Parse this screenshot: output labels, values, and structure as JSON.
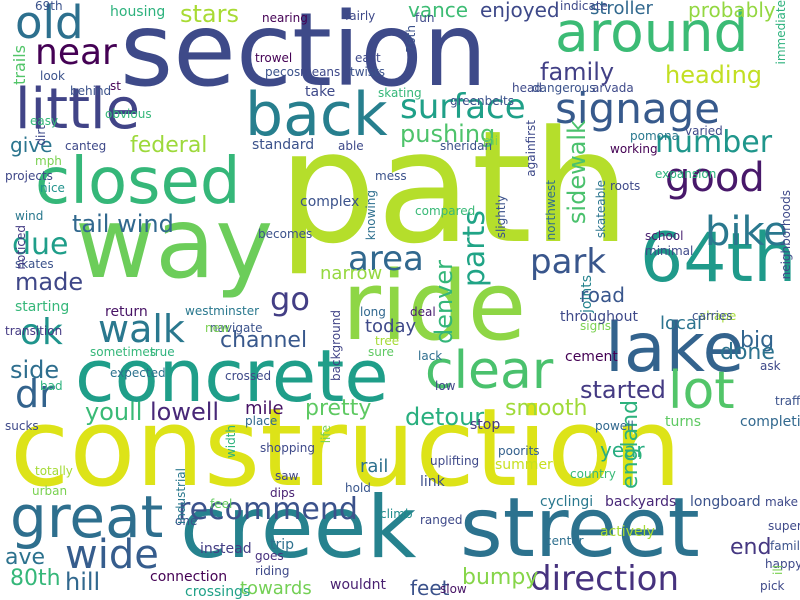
{
  "words": [
    {
      "text": "path",
      "color": "#b5de2b"
    },
    {
      "text": "construction",
      "color": "#dde318"
    },
    {
      "text": "section",
      "color": "#3e4a89"
    },
    {
      "text": "way",
      "color": "#6ccd5a"
    },
    {
      "text": "creek",
      "color": "#26828e"
    },
    {
      "text": "street",
      "color": "#2c728e"
    },
    {
      "text": "ride",
      "color": "#8ed645"
    },
    {
      "text": "concrete",
      "color": "#1f9e89"
    },
    {
      "text": "closed",
      "color": "#35b779"
    },
    {
      "text": "64th",
      "color": "#1f9a8a"
    },
    {
      "text": "around",
      "color": "#3bbb75"
    },
    {
      "text": "little",
      "color": "#414487"
    },
    {
      "text": "back",
      "color": "#277f8e"
    },
    {
      "text": "lake",
      "color": "#33638d"
    },
    {
      "text": "great",
      "color": "#2e6f8e"
    },
    {
      "text": "clear",
      "color": "#4ac16d"
    },
    {
      "text": "lot",
      "color": "#52c569"
    },
    {
      "text": "signage",
      "color": "#375a8c"
    },
    {
      "text": "surface",
      "color": "#1fa088"
    },
    {
      "text": "direction",
      "color": "#46327e"
    },
    {
      "text": "wide",
      "color": "#365d8d"
    },
    {
      "text": "area",
      "color": "#31688e"
    },
    {
      "text": "good",
      "color": "#48186a"
    },
    {
      "text": "bike",
      "color": "#2a788e"
    },
    {
      "text": "old",
      "color": "#2d708e"
    },
    {
      "text": "near",
      "color": "#440154"
    },
    {
      "text": "walk",
      "color": "#2a788e"
    },
    {
      "text": "ok",
      "color": "#1f948c"
    },
    {
      "text": "park",
      "color": "#39568c"
    },
    {
      "text": "go",
      "color": "#433e85"
    },
    {
      "text": "dr",
      "color": "#33638d"
    },
    {
      "text": "recommend",
      "color": "#3b528b"
    },
    {
      "text": "number",
      "color": "#1f968b"
    },
    {
      "text": "tail wind",
      "color": "#31688e"
    },
    {
      "text": "due",
      "color": "#1f9e89"
    },
    {
      "text": "parts",
      "color": "#20a486"
    },
    {
      "text": "heading",
      "color": "#c2df23"
    },
    {
      "text": "family",
      "color": "#424086"
    },
    {
      "text": "channel",
      "color": "#38588c"
    },
    {
      "text": "pretty",
      "color": "#5ec962"
    },
    {
      "text": "detour",
      "color": "#29af7f"
    },
    {
      "text": "lowell",
      "color": "#482878"
    },
    {
      "text": "youll",
      "color": "#3aba76"
    },
    {
      "text": "started",
      "color": "#443a83"
    },
    {
      "text": "hill",
      "color": "#31688e"
    },
    {
      "text": "80th",
      "color": "#35b779"
    },
    {
      "text": "ave",
      "color": "#2c728e"
    },
    {
      "text": "end",
      "color": "#453781"
    },
    {
      "text": "side",
      "color": "#2e6e8e"
    },
    {
      "text": "federal",
      "color": "#9dd93b"
    },
    {
      "text": "made",
      "color": "#3f4788"
    },
    {
      "text": "pushing",
      "color": "#4ec36b"
    },
    {
      "text": "stars",
      "color": "#a8db34"
    },
    {
      "text": "big",
      "color": "#32648e"
    },
    {
      "text": "done",
      "color": "#2c728e"
    },
    {
      "text": "bumpy",
      "color": "#86d549"
    },
    {
      "text": "give",
      "color": "#2b758e"
    },
    {
      "text": "smooth",
      "color": "#a0da39"
    },
    {
      "text": "road",
      "color": "#39568c"
    },
    {
      "text": "denver",
      "color": "#34b679"
    },
    {
      "text": "sidewalk",
      "color": "#4ac16d"
    },
    {
      "text": "vance",
      "color": "#3dbc74"
    },
    {
      "text": "feet",
      "color": "#3b528b"
    },
    {
      "text": "today",
      "color": "#3e4989"
    },
    {
      "text": "year",
      "color": "#27ad81"
    },
    {
      "text": "rail",
      "color": "#2d708e"
    },
    {
      "text": "towards",
      "color": "#74d055"
    },
    {
      "text": "mile",
      "color": "#471365"
    },
    {
      "text": "narrow",
      "color": "#95d840"
    },
    {
      "text": "local",
      "color": "#2c738e"
    },
    {
      "text": "enjoyed",
      "color": "#3e4989"
    },
    {
      "text": "probably",
      "color": "#93d741"
    },
    {
      "text": "england",
      "color": "#2db27d"
    },
    {
      "text": "stroller",
      "color": "#31688e"
    },
    {
      "text": "housing",
      "color": "#2db27d"
    },
    {
      "text": "trails",
      "color": "#52c569"
    },
    {
      "text": "cement",
      "color": "#440154"
    },
    {
      "text": "return",
      "color": "#471365"
    },
    {
      "text": "starting",
      "color": "#35b779"
    },
    {
      "text": "skates",
      "color": "#3b528b"
    },
    {
      "text": "projects",
      "color": "#3f4788"
    },
    {
      "text": "mph",
      "color": "#7ad151"
    },
    {
      "text": "nice",
      "color": "#20928c"
    },
    {
      "text": "wind",
      "color": "#2a788e"
    },
    {
      "text": "noticed",
      "color": "#443b84"
    },
    {
      "text": "wouldnt",
      "color": "#481f70"
    },
    {
      "text": "crossings",
      "color": "#1fa187"
    },
    {
      "text": "connection",
      "color": "#440154"
    },
    {
      "text": "instead",
      "color": "#433d84"
    },
    {
      "text": "trip",
      "color": "#2d708e"
    },
    {
      "text": "goes",
      "color": "#46307e"
    },
    {
      "text": "riding",
      "color": "#3e4989"
    },
    {
      "text": "one",
      "color": "#3b528b"
    },
    {
      "text": "feel",
      "color": "#62cb5f"
    },
    {
      "text": "dips",
      "color": "#482173"
    },
    {
      "text": "saw",
      "color": "#414487"
    },
    {
      "text": "hold",
      "color": "#39568c"
    },
    {
      "text": "climb",
      "color": "#228d8d"
    },
    {
      "text": "link",
      "color": "#3c4f8a"
    },
    {
      "text": "cyclingi",
      "color": "#2a788e"
    },
    {
      "text": "backyards",
      "color": "#482878"
    },
    {
      "text": "longboard",
      "color": "#3b528b"
    },
    {
      "text": "actively",
      "color": "#a8db34"
    },
    {
      "text": "slow",
      "color": "#471365"
    },
    {
      "text": "center",
      "color": "#2e6f8e"
    },
    {
      "text": "ranged",
      "color": "#3e4989"
    },
    {
      "text": "country",
      "color": "#38b977"
    },
    {
      "text": "summer",
      "color": "#c8e020"
    },
    {
      "text": "poorits",
      "color": "#34608d"
    },
    {
      "text": "uplifting",
      "color": "#3e4989"
    },
    {
      "text": "low",
      "color": "#404688"
    },
    {
      "text": "lack",
      "color": "#2e6e8e"
    },
    {
      "text": "stop",
      "color": "#443983"
    },
    {
      "text": "turns",
      "color": "#5ec962"
    },
    {
      "text": "completion",
      "color": "#31688e"
    },
    {
      "text": "powell",
      "color": "#31688e"
    },
    {
      "text": "traffic",
      "color": "#3b528b"
    },
    {
      "text": "ask",
      "color": "#3e4989"
    },
    {
      "text": "shape",
      "color": "#a5db36"
    },
    {
      "text": "carries",
      "color": "#3b528b"
    },
    {
      "text": "signs",
      "color": "#7ad151"
    },
    {
      "text": "throughout",
      "color": "#3e4989"
    },
    {
      "text": "joints",
      "color": "#25838e"
    },
    {
      "text": "minimal",
      "color": "#3e4989"
    },
    {
      "text": "school",
      "color": "#481f70"
    },
    {
      "text": "roots",
      "color": "#3e4989"
    },
    {
      "text": "skateable",
      "color": "#2b758e"
    },
    {
      "text": "slightly",
      "color": "#3b528b"
    },
    {
      "text": "northwest",
      "color": "#2e6e8e"
    },
    {
      "text": "compared",
      "color": "#38b977"
    },
    {
      "text": "mess",
      "color": "#3b528b"
    },
    {
      "text": "knowing",
      "color": "#2e6f8e"
    },
    {
      "text": "complex",
      "color": "#3b528b"
    },
    {
      "text": "long",
      "color": "#31688e"
    },
    {
      "text": "background",
      "color": "#414487"
    },
    {
      "text": "navigate",
      "color": "#3b528b"
    },
    {
      "text": "westminster",
      "color": "#2a788e"
    },
    {
      "text": "new",
      "color": "#7ad151"
    },
    {
      "text": "deal",
      "color": "#481f70"
    },
    {
      "text": "tree",
      "color": "#a5db36"
    },
    {
      "text": "sure",
      "color": "#5ec962"
    },
    {
      "text": "true",
      "color": "#2db27d"
    },
    {
      "text": "sometimes",
      "color": "#35b779"
    },
    {
      "text": "transition",
      "color": "#443983"
    },
    {
      "text": "expected",
      "color": "#2c728e"
    },
    {
      "text": "bad",
      "color": "#2db27d"
    },
    {
      "text": "crossed",
      "color": "#3e4989"
    },
    {
      "text": "place",
      "color": "#31688e"
    },
    {
      "text": "width",
      "color": "#2db27d"
    },
    {
      "text": "shopping",
      "color": "#3e4989"
    },
    {
      "text": "life",
      "color": "#7ad151"
    },
    {
      "text": "industrial",
      "color": "#2a788e"
    },
    {
      "text": "totally",
      "color": "#a5db36"
    },
    {
      "text": "urban",
      "color": "#7ad151"
    },
    {
      "text": "sucks",
      "color": "#3e4989"
    },
    {
      "text": "becomes",
      "color": "#3b528b"
    },
    {
      "text": "able",
      "color": "#3e4989"
    },
    {
      "text": "standard",
      "color": "#3b528b"
    },
    {
      "text": "sheridan",
      "color": "#3b528b"
    },
    {
      "text": "canteg",
      "color": "#3e4989"
    },
    {
      "text": "obvious",
      "color": "#35b779"
    },
    {
      "text": "easy",
      "color": "#35b779"
    },
    {
      "text": "dirt",
      "color": "#3e4989"
    },
    {
      "text": "look",
      "color": "#3b528b"
    },
    {
      "text": "behind",
      "color": "#3b528b"
    },
    {
      "text": "st",
      "color": "#440154"
    },
    {
      "text": "take",
      "color": "#3e4989"
    },
    {
      "text": "twists",
      "color": "#3b528b"
    },
    {
      "text": "means",
      "color": "#3e4989"
    },
    {
      "text": "pecos",
      "color": "#3b528b"
    },
    {
      "text": "east",
      "color": "#3e4989"
    },
    {
      "text": "trowel",
      "color": "#440154"
    },
    {
      "text": "nearing",
      "color": "#440154"
    },
    {
      "text": "fairly",
      "color": "#3e4989"
    },
    {
      "text": "76th",
      "color": "#3b528b"
    },
    {
      "text": "skating",
      "color": "#35b779"
    },
    {
      "text": "greenbelts",
      "color": "#3b528b"
    },
    {
      "text": "fun",
      "color": "#3e4989"
    },
    {
      "text": "indicate",
      "color": "#3e4989"
    },
    {
      "text": "69th",
      "color": "#3b528b"
    },
    {
      "text": "head",
      "color": "#3e4989"
    },
    {
      "text": "dangerous",
      "color": "#3b528b"
    },
    {
      "text": "arvada",
      "color": "#3e4989"
    },
    {
      "text": "againfirst",
      "color": "#3e4989"
    },
    {
      "text": "mi",
      "color": "#7ad151"
    },
    {
      "text": "pomona",
      "color": "#2a788e"
    },
    {
      "text": "working",
      "color": "#440154"
    },
    {
      "text": "varied",
      "color": "#3e4989"
    },
    {
      "text": "immediate",
      "color": "#2db27d"
    },
    {
      "text": "neighborhoods",
      "color": "#3e4989"
    },
    {
      "text": "expansion",
      "color": "#2db27d"
    },
    {
      "text": "pick",
      "color": "#3e4989"
    },
    {
      "text": "familiar",
      "color": "#3b528b"
    },
    {
      "text": "super",
      "color": "#3e4989"
    },
    {
      "text": "make",
      "color": "#3e4989"
    },
    {
      "text": "happy",
      "color": "#3e4989"
    },
    {
      "text": "ill",
      "color": "#7ad151"
    },
    {
      "text": "wasn",
      "color": "#3e4989"
    }
  ]
}
